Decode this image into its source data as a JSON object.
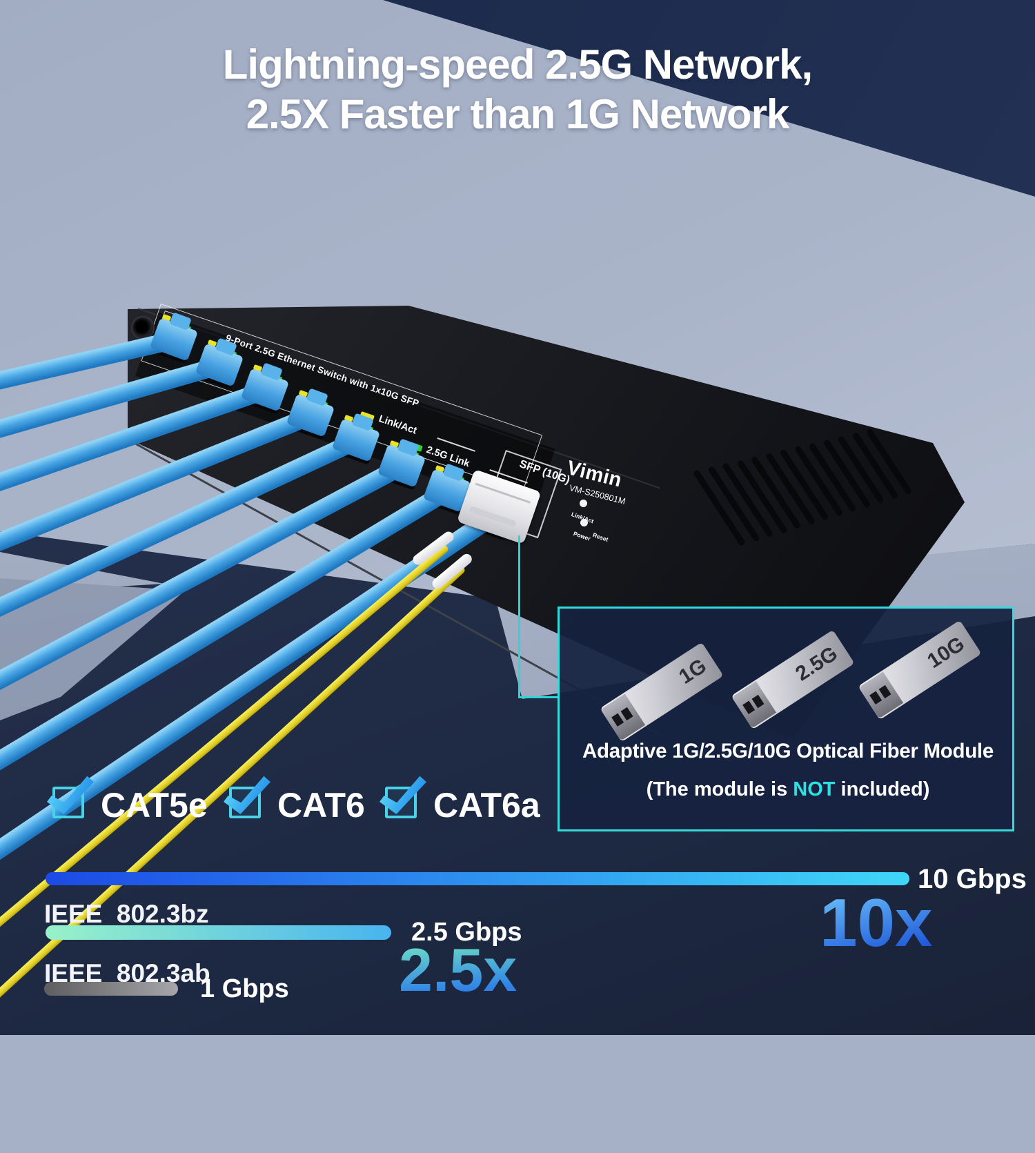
{
  "title": {
    "line1": "Lightning-speed 2.5G Network,",
    "line2": "2.5X Faster than 1G Network"
  },
  "device": {
    "panel_label": "9-Port 2.5G Ethernet Switch with 1x10G SFP",
    "led_legend": [
      {
        "label": "Link/Act",
        "color": "#e8e229"
      },
      {
        "label": "2.5G Link",
        "color": "#2ed32e"
      }
    ],
    "sfp_port_label": "SFP (10G)",
    "brand": "Vimin",
    "model": "VM-S250801M",
    "front_leds": [
      {
        "label": "Link/Act"
      },
      {
        "label": "Power"
      }
    ],
    "reset_label": "Reset"
  },
  "inset": {
    "modules": [
      "1G",
      "2.5G",
      "10G"
    ],
    "caption": "Adaptive 1G/2.5G/10G Optical Fiber Module",
    "note_prefix": "(The module is ",
    "note_highlight": "NOT",
    "note_suffix": " included)",
    "border_color": "#35dada",
    "highlight_color": "#2be2e2"
  },
  "cable_types": [
    {
      "label": "CAT5e"
    },
    {
      "label": "CAT6"
    },
    {
      "label": "CAT6a"
    }
  ],
  "chart_data": {
    "type": "bar",
    "orientation": "horizontal",
    "unit": "Gbps",
    "max_value": 10,
    "series": [
      {
        "standard": "",
        "label": "10 Gbps",
        "value": 10,
        "multiplier": "10x",
        "bar_length_pct": 100,
        "colors": [
          "#1c4ae6",
          "#3fd8f8"
        ]
      },
      {
        "standard": "IEEE  802.3bz",
        "label": "2.5 Gbps",
        "value": 2.5,
        "multiplier": "2.5x",
        "bar_length_pct": 40,
        "colors": [
          "#98f2c8",
          "#48b4f0"
        ]
      },
      {
        "standard": "IEEE  802.3ab",
        "label": "1 Gbps",
        "value": 1,
        "multiplier": "",
        "bar_length_pct": 15.5,
        "colors": [
          "#5e5e60",
          "#a6a6aa"
        ]
      }
    ],
    "legend_position": "none",
    "grid": false
  },
  "accent_colors": {
    "check_cyan": "#4ad2e8",
    "cable_blue": "#47a5e4",
    "fiber_yellow": "#e8d82a",
    "callout_teal": "#2ed5d5"
  }
}
